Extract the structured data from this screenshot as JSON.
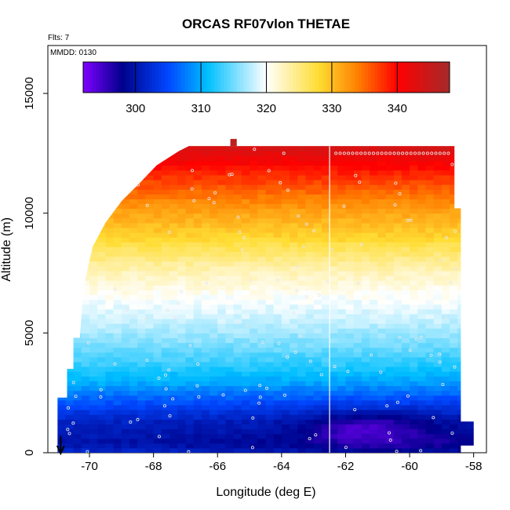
{
  "chart_data": {
    "type": "heatmap",
    "title": "ORCAS RF07vlon THETAE",
    "annotations": [
      "Flts: 7",
      "MMDD: 0130"
    ],
    "xlabel": "Longitude (deg E)",
    "ylabel": "Altitude (m)",
    "xlim": [
      -71.3,
      -57.6
    ],
    "ylim": [
      0,
      17000
    ],
    "x_ticks": [
      -70,
      -68,
      -66,
      -64,
      -62,
      -60,
      -58
    ],
    "y_ticks": [
      0,
      5000,
      10000,
      15000
    ],
    "colorbar": {
      "range": [
        292,
        348
      ],
      "ticks": [
        300,
        310,
        320,
        330,
        340
      ],
      "colors": [
        "#7f00ff",
        "#00008b",
        "#0047ff",
        "#00bfff",
        "#ffffff",
        "#ffdd33",
        "#ff7f00",
        "#ff0000",
        "#a52a2a"
      ]
    },
    "vertical_line_x": -62.5,
    "arrow_x": -70.9,
    "domain_left_edge": [
      {
        "alt": 0,
        "lon": -71.0
      },
      {
        "alt": 2300,
        "lon": -71.0
      },
      {
        "alt": 2300,
        "lon": -70.7
      },
      {
        "alt": 3500,
        "lon": -70.7
      },
      {
        "alt": 3500,
        "lon": -70.5
      },
      {
        "alt": 4800,
        "lon": -70.5
      },
      {
        "alt": 4800,
        "lon": -70.3
      },
      {
        "alt": 6600,
        "lon": -70.2
      },
      {
        "alt": 7400,
        "lon": -70.1
      },
      {
        "alt": 8600,
        "lon": -69.9
      },
      {
        "alt": 9600,
        "lon": -69.5
      },
      {
        "alt": 10500,
        "lon": -69.0
      },
      {
        "alt": 11300,
        "lon": -68.4
      },
      {
        "alt": 12000,
        "lon": -67.9
      },
      {
        "alt": 12600,
        "lon": -67.2
      },
      {
        "alt": 12800,
        "lon": -66.9
      }
    ],
    "domain_top": 12800,
    "domain_right_edge": [
      {
        "alt": 12500,
        "lon": -58.6
      },
      {
        "alt": 10200,
        "lon": -58.6
      },
      {
        "alt": 10200,
        "lon": -58.4
      },
      {
        "alt": 1300,
        "lon": -58.4
      },
      {
        "alt": 1300,
        "lon": -58.0
      },
      {
        "alt": 300,
        "lon": -58.0
      },
      {
        "alt": 300,
        "lon": -58.4
      },
      {
        "alt": 0,
        "lon": -58.4
      }
    ],
    "theta_profile": [
      {
        "alt": 0,
        "theta": 300.5
      },
      {
        "alt": 400,
        "theta": 298.5
      },
      {
        "alt": 800,
        "theta": 299.5
      },
      {
        "alt": 1300,
        "theta": 300.5
      },
      {
        "alt": 1800,
        "theta": 303
      },
      {
        "alt": 2300,
        "theta": 306
      },
      {
        "alt": 3000,
        "theta": 310
      },
      {
        "alt": 3800,
        "theta": 313
      },
      {
        "alt": 4600,
        "theta": 315.5
      },
      {
        "alt": 5500,
        "theta": 318
      },
      {
        "alt": 6500,
        "theta": 320
      },
      {
        "alt": 7500,
        "theta": 322.5
      },
      {
        "alt": 8300,
        "theta": 325.5
      },
      {
        "alt": 9000,
        "theta": 328.5
      },
      {
        "alt": 10000,
        "theta": 331.5
      },
      {
        "alt": 11000,
        "theta": 335.5
      },
      {
        "alt": 11800,
        "theta": 339
      },
      {
        "alt": 12500,
        "theta": 342.5
      },
      {
        "alt": 13000,
        "theta": 345
      }
    ],
    "low_level_cold_anomaly": {
      "lon_center": -61.5,
      "alt_center": 900,
      "magnitude": -5
    },
    "summit_cell": {
      "lon": -65.5,
      "alt": 12900
    }
  }
}
